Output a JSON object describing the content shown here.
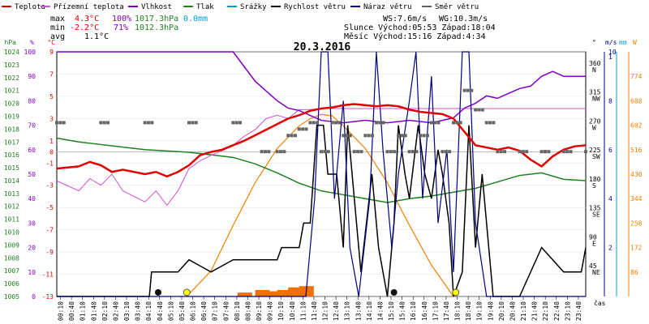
{
  "title": "20.3.2016",
  "legend": [
    {
      "label": "Teplota",
      "color": "#e00000"
    },
    {
      "label": "Přízemní teplota",
      "color": "#d050d0"
    },
    {
      "label": "Vlhkost",
      "color": "#8000c0"
    },
    {
      "label": "Tlak",
      "color": "#208020"
    },
    {
      "label": "Srážky",
      "color": "#00a0d0"
    },
    {
      "label": "Rychlost větru",
      "color": "#000000"
    },
    {
      "label": "Náraz větru",
      "color": "#000080"
    },
    {
      "label": "Směr větru",
      "color": "#606060"
    }
  ],
  "stats": {
    "max_label": "max",
    "max_temp": "4.3°C",
    "max_hum": "100%",
    "max_press": "1017.3hPa",
    "max_rain": "0.0mm",
    "min_label": "min",
    "min_temp": "-2.2°C",
    "min_hum": "71%",
    "min_press": "1012.3hPa",
    "avg_label": "avg",
    "avg_temp": "1.1°C"
  },
  "wind_sun": {
    "ws": "WS:7.6m/s",
    "wg": "WG:10.3m/s",
    "sun": "Slunce Východ:05:53  Západ:18:04",
    "moon": "Měsíc  Východ:15:16  Západ:4:34"
  },
  "axes": {
    "hpa_unit": "hPa",
    "pct_unit": "%",
    "c_unit": "°C",
    "deg_unit": "°",
    "ms_unit": "m/s",
    "mm_unit": "mm",
    "w_unit": "W",
    "hpa_ticks": [
      "1024",
      "1023",
      "1022",
      "1021",
      "1020",
      "1019",
      "1018",
      "1017",
      "1016",
      "1015",
      "1014",
      "1013",
      "1012",
      "1011",
      "1010",
      "1009",
      "1008",
      "1007",
      "1006",
      "1005"
    ],
    "pct_ticks": [
      "100",
      "90",
      "80",
      "70",
      "60",
      "50",
      "40",
      "30",
      "20",
      "10",
      "0"
    ],
    "c_ticks": [
      "9",
      "7",
      "5",
      "3",
      "1",
      "0",
      "-1",
      "-3",
      "-5",
      "-7",
      "-9",
      "-11",
      "-13"
    ],
    "dir_ticks": [
      "360 N",
      "315 NW",
      "270 W",
      "225 SW",
      "180 S",
      "135 SE",
      "90 E",
      "45 NE"
    ],
    "ms_ticks": [
      "1",
      "10",
      "8",
      "6",
      "4",
      "2"
    ],
    "w_ticks": [
      "774",
      "688",
      "602",
      "516",
      "430",
      "344",
      "258",
      "172",
      "86"
    ],
    "time_label": "čas",
    "time_ticks": [
      "00:10",
      "00:40",
      "01:10",
      "01:40",
      "02:10",
      "02:40",
      "03:10",
      "03:40",
      "04:10",
      "04:40",
      "05:10",
      "05:40",
      "06:10",
      "06:40",
      "07:10",
      "07:40",
      "08:10",
      "08:40",
      "09:10",
      "09:40",
      "10:10",
      "10:40",
      "11:10",
      "11:40",
      "12:10",
      "12:40",
      "13:10",
      "13:40",
      "14:10",
      "14:40",
      "15:10",
      "15:40",
      "16:10",
      "16:40",
      "17:10",
      "17:40",
      "18:10",
      "18:40",
      "19:10",
      "19:40",
      "20:10",
      "20:40",
      "21:10",
      "21:40",
      "22:10",
      "22:40",
      "23:10",
      "23:40"
    ]
  },
  "chart_data": {
    "type": "line",
    "title": "20.3.2016",
    "x_range_hours": [
      0,
      24
    ],
    "series": [
      {
        "name": "Teplota",
        "unit": "°C",
        "color": "#e00000",
        "points": [
          [
            0,
            -1.5
          ],
          [
            1,
            -1.3
          ],
          [
            1.5,
            -0.9
          ],
          [
            2,
            -1.2
          ],
          [
            2.5,
            -1.8
          ],
          [
            3,
            -1.6
          ],
          [
            4,
            -2.0
          ],
          [
            4.5,
            -1.8
          ],
          [
            5,
            -2.2
          ],
          [
            5.5,
            -1.8
          ],
          [
            6,
            -1.2
          ],
          [
            6.5,
            -0.3
          ],
          [
            7,
            0.0
          ],
          [
            7.5,
            0.2
          ],
          [
            8,
            0.6
          ],
          [
            8.5,
            1.0
          ],
          [
            9,
            1.5
          ],
          [
            9.5,
            2.0
          ],
          [
            10,
            2.5
          ],
          [
            10.5,
            3.0
          ],
          [
            11,
            3.3
          ],
          [
            11.5,
            3.7
          ],
          [
            12,
            3.9
          ],
          [
            12.5,
            4.0
          ],
          [
            13,
            4.2
          ],
          [
            13.5,
            4.3
          ],
          [
            14,
            4.2
          ],
          [
            14.5,
            4.1
          ],
          [
            15,
            4.2
          ],
          [
            15.5,
            4.1
          ],
          [
            16,
            3.8
          ],
          [
            16.5,
            3.6
          ],
          [
            17,
            3.5
          ],
          [
            17.5,
            3.4
          ],
          [
            18,
            3.0
          ],
          [
            18.5,
            1.8
          ],
          [
            19,
            0.6
          ],
          [
            19.5,
            0.4
          ],
          [
            20,
            0.2
          ],
          [
            20.5,
            0.4
          ],
          [
            21,
            0.1
          ],
          [
            21.5,
            -0.7
          ],
          [
            22,
            -1.3
          ],
          [
            22.5,
            -0.4
          ],
          [
            23,
            0.2
          ],
          [
            23.5,
            0.5
          ],
          [
            24,
            0.6
          ]
        ]
      },
      {
        "name": "Přízemní teplota",
        "unit": "°C",
        "color": "#d050d0",
        "points": [
          [
            0,
            -2.6
          ],
          [
            1,
            -3.5
          ],
          [
            1.5,
            -2.4
          ],
          [
            2,
            -3.0
          ],
          [
            2.5,
            -2.0
          ],
          [
            3,
            -3.5
          ],
          [
            3.5,
            -4.0
          ],
          [
            4,
            -4.5
          ],
          [
            4.5,
            -3.5
          ],
          [
            5,
            -4.8
          ],
          [
            5.5,
            -3.5
          ],
          [
            6,
            -1.5
          ],
          [
            6.5,
            -0.8
          ],
          [
            7,
            -0.3
          ],
          [
            7.5,
            0.1
          ],
          [
            8,
            0.6
          ],
          [
            8.5,
            1.4
          ],
          [
            9,
            2.0
          ],
          [
            9.5,
            3.0
          ],
          [
            10,
            3.3
          ],
          [
            10.5,
            3.0
          ],
          [
            11,
            3.8
          ],
          [
            11.5,
            3.8
          ],
          [
            12,
            3.9
          ],
          [
            13,
            3.9
          ],
          [
            24,
            3.9
          ]
        ]
      },
      {
        "name": "Vlhkost",
        "unit": "%",
        "color": "#8000c0",
        "points": [
          [
            0,
            100
          ],
          [
            8,
            100
          ],
          [
            8.5,
            94
          ],
          [
            9,
            88
          ],
          [
            9.5,
            84
          ],
          [
            10,
            80
          ],
          [
            10.5,
            77
          ],
          [
            11,
            76
          ],
          [
            11.5,
            74
          ],
          [
            12,
            72
          ],
          [
            13,
            71
          ],
          [
            14,
            72
          ],
          [
            15,
            71
          ],
          [
            16,
            72
          ],
          [
            17,
            71
          ],
          [
            18,
            73
          ],
          [
            18.5,
            77
          ],
          [
            19,
            79
          ],
          [
            19.5,
            82
          ],
          [
            20,
            81
          ],
          [
            20.5,
            83
          ],
          [
            21,
            85
          ],
          [
            21.5,
            86
          ],
          [
            22,
            90
          ],
          [
            22.5,
            92
          ],
          [
            23,
            90
          ],
          [
            24,
            90
          ]
        ]
      },
      {
        "name": "Tlak",
        "unit": "hPa",
        "color": "#208020",
        "points": [
          [
            0,
            1017.3
          ],
          [
            1,
            1017.0
          ],
          [
            2,
            1016.8
          ],
          [
            3,
            1016.6
          ],
          [
            4,
            1016.4
          ],
          [
            5,
            1016.3
          ],
          [
            6,
            1016.2
          ],
          [
            7,
            1016.0
          ],
          [
            8,
            1015.8
          ],
          [
            9,
            1015.3
          ],
          [
            10,
            1014.6
          ],
          [
            11,
            1013.8
          ],
          [
            12,
            1013.2
          ],
          [
            13,
            1012.9
          ],
          [
            14,
            1012.6
          ],
          [
            15,
            1012.3
          ],
          [
            16,
            1012.6
          ],
          [
            17,
            1012.8
          ],
          [
            18,
            1013.1
          ],
          [
            19,
            1013.4
          ],
          [
            20,
            1013.9
          ],
          [
            21,
            1014.4
          ],
          [
            22,
            1014.6
          ],
          [
            23,
            1014.1
          ],
          [
            24,
            1014.0
          ]
        ]
      },
      {
        "name": "Rychlost větru",
        "unit": "m/s",
        "color": "#000000",
        "points": [
          [
            0,
            0
          ],
          [
            4.2,
            0
          ],
          [
            4.3,
            1
          ],
          [
            5.5,
            1
          ],
          [
            6,
            1.5
          ],
          [
            7,
            1.0
          ],
          [
            8,
            1.5
          ],
          [
            10,
            1.5
          ],
          [
            10.2,
            2
          ],
          [
            11,
            2
          ],
          [
            11.2,
            3
          ],
          [
            11.5,
            3
          ],
          [
            11.8,
            7
          ],
          [
            12.1,
            7
          ],
          [
            12.3,
            5
          ],
          [
            12.7,
            5
          ],
          [
            13,
            2
          ],
          [
            13.2,
            7
          ],
          [
            13.5,
            4
          ],
          [
            13.8,
            1
          ],
          [
            14.3,
            5
          ],
          [
            14.6,
            2
          ],
          [
            15,
            0
          ],
          [
            15.3,
            3
          ],
          [
            15.5,
            7
          ],
          [
            15.8,
            5
          ],
          [
            16,
            4
          ],
          [
            16.4,
            7
          ],
          [
            16.7,
            5
          ],
          [
            17,
            4
          ],
          [
            17.3,
            6
          ],
          [
            17.5,
            5
          ],
          [
            17.8,
            3
          ],
          [
            18,
            0
          ],
          [
            18.4,
            1
          ],
          [
            18.7,
            7
          ],
          [
            19,
            2
          ],
          [
            19.3,
            5
          ],
          [
            19.8,
            0
          ],
          [
            21,
            0
          ],
          [
            21.5,
            1
          ],
          [
            22,
            2
          ],
          [
            23,
            1
          ],
          [
            23.8,
            1
          ],
          [
            24,
            2
          ]
        ]
      },
      {
        "name": "Náraz větru",
        "unit": "m/s",
        "color": "#000080",
        "points": [
          [
            0,
            0
          ],
          [
            11.3,
            0
          ],
          [
            11.7,
            4
          ],
          [
            12,
            10
          ],
          [
            12.3,
            10
          ],
          [
            12.6,
            4
          ],
          [
            13,
            8
          ],
          [
            13.3,
            2
          ],
          [
            13.7,
            0
          ],
          [
            14.2,
            4
          ],
          [
            14.5,
            10
          ],
          [
            14.8,
            6
          ],
          [
            15.2,
            2
          ],
          [
            15.5,
            5
          ],
          [
            16,
            8
          ],
          [
            16.3,
            10
          ],
          [
            16.6,
            4
          ],
          [
            17,
            9
          ],
          [
            17.3,
            3
          ],
          [
            17.7,
            6
          ],
          [
            18,
            1
          ],
          [
            18.4,
            10
          ],
          [
            18.7,
            10
          ],
          [
            19,
            3
          ],
          [
            19.5,
            0
          ],
          [
            24,
            0
          ]
        ]
      },
      {
        "name": "Směr větru",
        "unit": "°",
        "color": "#606060",
        "points": [
          [
            0,
            270
          ],
          [
            2,
            270
          ],
          [
            4,
            270
          ],
          [
            6,
            270
          ],
          [
            8,
            270
          ],
          [
            9.3,
            225
          ],
          [
            10,
            225
          ],
          [
            10.5,
            250
          ],
          [
            11,
            260
          ],
          [
            11.5,
            270
          ],
          [
            12,
            225
          ],
          [
            12.5,
            270
          ],
          [
            13,
            250
          ],
          [
            13.5,
            225
          ],
          [
            14,
            250
          ],
          [
            14.5,
            270
          ],
          [
            15,
            225
          ],
          [
            15.5,
            250
          ],
          [
            16,
            225
          ],
          [
            16.5,
            250
          ],
          [
            17,
            270
          ],
          [
            17.5,
            225
          ],
          [
            18,
            270
          ],
          [
            18.5,
            320
          ],
          [
            19,
            290
          ],
          [
            19.5,
            270
          ],
          [
            20,
            225
          ],
          [
            21,
            225
          ],
          [
            22,
            225
          ],
          [
            23,
            225
          ],
          [
            24,
            225
          ]
        ]
      },
      {
        "name": "Sluneční záření",
        "unit": "W",
        "color": "#f08000",
        "points": [
          [
            5.9,
            0
          ],
          [
            7,
            90
          ],
          [
            8,
            250
          ],
          [
            9,
            400
          ],
          [
            10,
            520
          ],
          [
            11,
            600
          ],
          [
            11.5,
            625
          ],
          [
            12,
            640
          ],
          [
            12.5,
            635
          ],
          [
            13,
            600
          ],
          [
            14,
            520
          ],
          [
            15,
            400
          ],
          [
            16,
            250
          ],
          [
            17,
            110
          ],
          [
            18,
            0
          ]
        ]
      }
    ]
  }
}
